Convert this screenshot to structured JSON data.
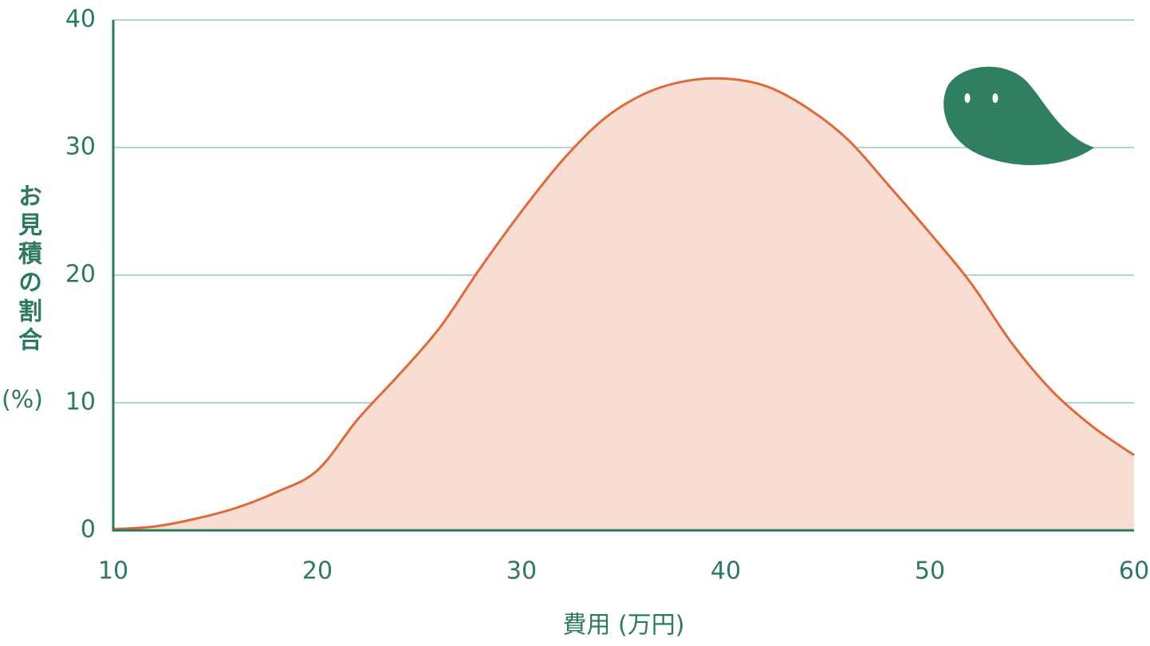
{
  "chart_data": {
    "type": "area",
    "x_label": "費用 (万円)",
    "y_label": "お見積の割合",
    "y_unit": "(%)",
    "x": [
      10,
      12,
      14,
      16,
      18,
      20,
      22,
      24,
      26,
      28,
      30,
      32,
      34,
      36,
      38,
      40,
      42,
      44,
      46,
      48,
      50,
      52,
      54,
      56,
      58,
      60
    ],
    "series": [
      {
        "color": "#e0693a",
        "values": [
          0.1,
          0.3,
          0.9,
          1.75,
          3.0,
          4.7,
          8.75,
          12.2,
          15.9,
          20.6,
          25.0,
          29.0,
          32.2,
          34.2,
          35.2,
          35.4,
          34.8,
          33.1,
          30.6,
          27.0,
          23.3,
          19.4,
          14.7,
          10.9,
          8.1,
          5.9
        ]
      }
    ],
    "fill_color": "#f7ddd2",
    "xlim": [
      10,
      60
    ],
    "xticks": [
      10,
      20,
      30,
      40,
      50,
      60
    ],
    "ylim": [
      0,
      40
    ],
    "yticks": [
      0,
      10,
      20,
      30,
      40
    ],
    "grid": true
  }
}
